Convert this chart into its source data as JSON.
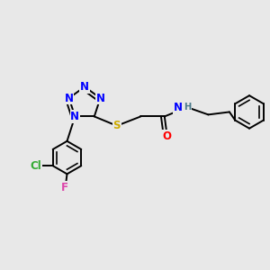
{
  "bg_color": "#e8e8e8",
  "atom_colors": {
    "N": "#0000ff",
    "S": "#ccaa00",
    "O": "#ff0000",
    "C": "#000000",
    "H": "#4a7a8a",
    "Cl": "#33aa33",
    "F": "#dd44aa"
  },
  "bond_color": "#000000",
  "bond_width": 1.4,
  "font_size_atom": 8.5
}
